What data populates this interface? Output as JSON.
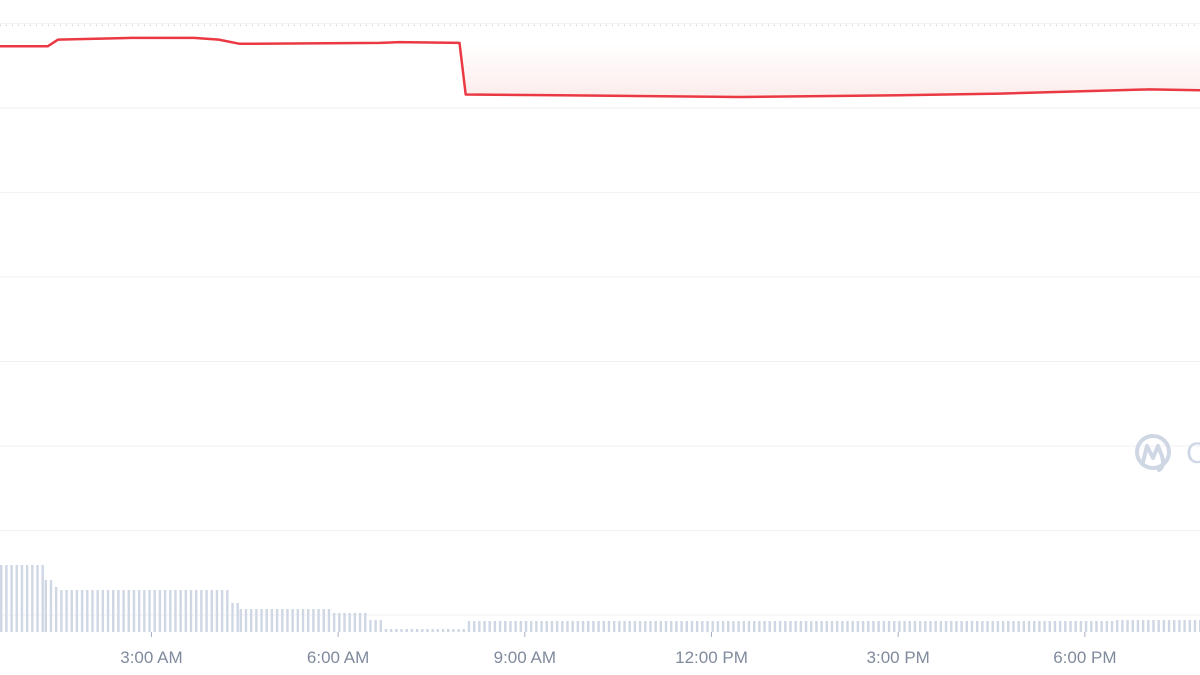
{
  "chart_data": {
    "type": "line",
    "title": "",
    "xlabel": "",
    "ylabel": "",
    "y_axis_labels_visible": false,
    "grid": "horizontal",
    "x_ticks": [
      "3:00 AM",
      "6:00 AM",
      "9:00 AM",
      "12:00 PM",
      "3:00 PM",
      "6:00 PM"
    ],
    "x_range": [
      "00:34",
      "19:51"
    ],
    "y_range_relative": [
      0,
      7.3
    ],
    "baseline_relative": 6.98,
    "colors": {
      "price_line": "#ea3943",
      "fill": "#fdecec",
      "volume": "#cfd6e4",
      "grid": "#f0f2f5",
      "tick": "#808a9d"
    },
    "price_series": [
      [
        "00:34",
        6.73
      ],
      [
        "01:20",
        6.73
      ],
      [
        "01:30",
        6.81
      ],
      [
        "02:40",
        6.83
      ],
      [
        "03:41",
        6.83
      ],
      [
        "04:05",
        6.81
      ],
      [
        "04:25",
        6.76
      ],
      [
        "06:40",
        6.77
      ],
      [
        "06:59",
        6.78
      ],
      [
        "07:57",
        6.77
      ],
      [
        "08:03",
        6.16
      ],
      [
        "09:33",
        6.15
      ],
      [
        "12:27",
        6.13
      ],
      [
        "15:01",
        6.15
      ],
      [
        "16:38",
        6.17
      ],
      [
        "19:02",
        6.22
      ],
      [
        "19:51",
        6.21
      ]
    ],
    "volume_series": [
      {
        "from": "00:34",
        "to": "01:17",
        "value": 67
      },
      {
        "from": "01:17",
        "to": "01:27",
        "value": 52
      },
      {
        "from": "01:27",
        "to": "01:32",
        "value": 45
      },
      {
        "from": "01:32",
        "to": "04:17",
        "value": 42
      },
      {
        "from": "04:17",
        "to": "04:25",
        "value": 29
      },
      {
        "from": "04:25",
        "to": "05:55",
        "value": 23
      },
      {
        "from": "05:55",
        "to": "06:30",
        "value": 19
      },
      {
        "from": "06:30",
        "to": "06:45",
        "value": 12
      },
      {
        "from": "06:45",
        "to": "08:05",
        "value": 3
      },
      {
        "from": "08:05",
        "to": "18:30",
        "value": 11
      },
      {
        "from": "18:30",
        "to": "19:51",
        "value": 12
      }
    ]
  },
  "watermark": {
    "brand": "CoinMarketCap",
    "visible_text": "C"
  }
}
